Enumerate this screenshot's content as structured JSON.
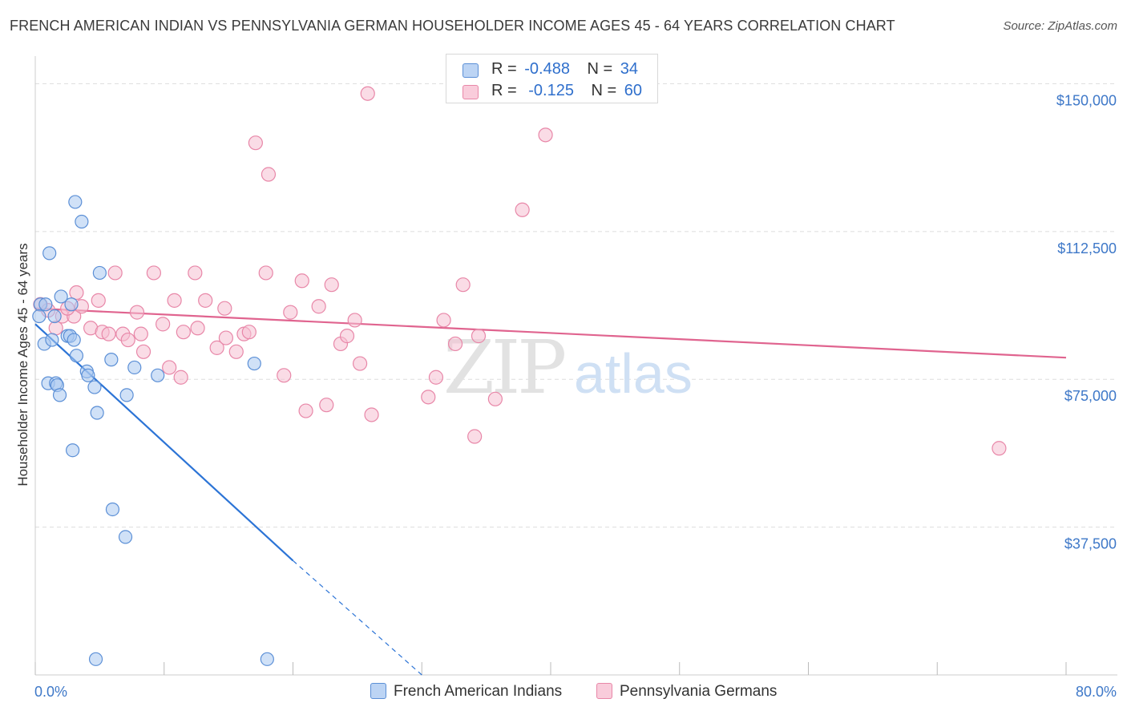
{
  "title": "FRENCH AMERICAN INDIAN VS PENNSYLVANIA GERMAN HOUSEHOLDER INCOME AGES 45 - 64 YEARS CORRELATION CHART",
  "source": "Source: ZipAtlas.com",
  "watermark": {
    "zip": "ZIP",
    "atlas": "atlas"
  },
  "legend_top": {
    "series1": {
      "r_label": "R =",
      "r_value": "-0.488",
      "n_label": "N =",
      "n_value": "34"
    },
    "series2": {
      "r_label": "R =",
      "r_value": "-0.125",
      "n_label": "N =",
      "n_value": "60"
    }
  },
  "colors": {
    "blue_fill": "#a9c8f0",
    "blue_stroke": "#5b8fd6",
    "blue_line": "#2c74d6",
    "pink_fill": "#f6c0d2",
    "pink_stroke": "#e887a8",
    "pink_line": "#e0648f",
    "tick_label": "#3e78c8",
    "grid": "#dddddd"
  },
  "chart_data": {
    "type": "scatter",
    "title": "FRENCH AMERICAN INDIAN VS PENNSYLVANIA GERMAN HOUSEHOLDER INCOME AGES 45 - 64 YEARS CORRELATION CHART",
    "xlabel": "",
    "ylabel": "Householder Income Ages 45 - 64 years",
    "xlim": [
      0,
      80
    ],
    "ylim": [
      0,
      157000
    ],
    "x_tick_labels": {
      "left": "0.0%",
      "right": "80.0%"
    },
    "y_ticks": [
      {
        "value": 150000,
        "label": "$150,000"
      },
      {
        "value": 112500,
        "label": "$112,500"
      },
      {
        "value": 75000,
        "label": "$75,000"
      },
      {
        "value": 37500,
        "label": "$37,500"
      }
    ],
    "series": [
      {
        "name": "French American Indians",
        "r": -0.488,
        "n": 34,
        "points": [
          [
            0.4,
            94000
          ],
          [
            0.7,
            84000
          ],
          [
            0.8,
            94000
          ],
          [
            1.0,
            74000
          ],
          [
            1.1,
            107000
          ],
          [
            1.3,
            85000
          ],
          [
            1.5,
            91000
          ],
          [
            1.6,
            74000
          ],
          [
            1.7,
            73500
          ],
          [
            1.9,
            71000
          ],
          [
            2.0,
            96000
          ],
          [
            2.5,
            86000
          ],
          [
            2.7,
            86000
          ],
          [
            2.8,
            94000
          ],
          [
            2.9,
            57000
          ],
          [
            3.0,
            85000
          ],
          [
            3.2,
            81000
          ],
          [
            3.1,
            120000
          ],
          [
            3.6,
            115000
          ],
          [
            4.0,
            77000
          ],
          [
            4.1,
            76000
          ],
          [
            4.6,
            73000
          ],
          [
            4.8,
            66500
          ],
          [
            5.0,
            102000
          ],
          [
            5.9,
            80000
          ],
          [
            7.1,
            71000
          ],
          [
            7.7,
            78000
          ],
          [
            9.5,
            76000
          ],
          [
            17.0,
            79000
          ],
          [
            6.0,
            42000
          ],
          [
            7.0,
            35000
          ],
          [
            4.7,
            4000
          ],
          [
            18.0,
            4000
          ],
          [
            0.3,
            91000
          ]
        ],
        "trend": {
          "x": [
            0,
            20
          ],
          "y": [
            89000,
            29000
          ],
          "dashed_to": [
            30,
            0
          ]
        }
      },
      {
        "name": "Pennsylvania Germans",
        "r": -0.125,
        "n": 60,
        "points": [
          [
            0.4,
            94000
          ],
          [
            1.6,
            88000
          ],
          [
            2.1,
            91000
          ],
          [
            3.0,
            91000
          ],
          [
            3.2,
            97000
          ],
          [
            3.6,
            93500
          ],
          [
            4.3,
            88000
          ],
          [
            4.9,
            95000
          ],
          [
            5.2,
            87000
          ],
          [
            5.7,
            86500
          ],
          [
            6.2,
            102000
          ],
          [
            6.8,
            86500
          ],
          [
            7.2,
            85000
          ],
          [
            7.9,
            92000
          ],
          [
            8.2,
            86500
          ],
          [
            8.4,
            82000
          ],
          [
            9.2,
            102000
          ],
          [
            9.9,
            89000
          ],
          [
            10.4,
            78000
          ],
          [
            10.8,
            95000
          ],
          [
            11.3,
            75500
          ],
          [
            11.5,
            87000
          ],
          [
            12.4,
            102000
          ],
          [
            12.6,
            88000
          ],
          [
            13.2,
            95000
          ],
          [
            14.1,
            83000
          ],
          [
            14.7,
            93000
          ],
          [
            14.8,
            85500
          ],
          [
            15.6,
            82000
          ],
          [
            16.2,
            86500
          ],
          [
            16.6,
            87000
          ],
          [
            17.1,
            135000
          ],
          [
            18.1,
            127000
          ],
          [
            17.9,
            102000
          ],
          [
            19.3,
            76000
          ],
          [
            19.8,
            92000
          ],
          [
            20.7,
            100000
          ],
          [
            21.0,
            67000
          ],
          [
            22.0,
            93500
          ],
          [
            22.6,
            68500
          ],
          [
            23.0,
            99000
          ],
          [
            23.7,
            84000
          ],
          [
            24.2,
            86000
          ],
          [
            24.8,
            90000
          ],
          [
            25.2,
            79000
          ],
          [
            26.1,
            66000
          ],
          [
            25.8,
            147500
          ],
          [
            30.5,
            70500
          ],
          [
            31.1,
            75500
          ],
          [
            31.7,
            90000
          ],
          [
            32.6,
            84000
          ],
          [
            33.2,
            99000
          ],
          [
            34.1,
            60500
          ],
          [
            34.4,
            86000
          ],
          [
            35.7,
            70000
          ],
          [
            37.8,
            118000
          ],
          [
            39.6,
            137000
          ],
          [
            74.8,
            57500
          ],
          [
            2.5,
            93000
          ],
          [
            1.0,
            92500
          ]
        ],
        "trend": {
          "x": [
            0,
            80
          ],
          "y": [
            93000,
            80500
          ]
        }
      }
    ]
  },
  "bottom_legend": {
    "series1_label": "French American Indians",
    "series2_label": "Pennsylvania Germans"
  }
}
